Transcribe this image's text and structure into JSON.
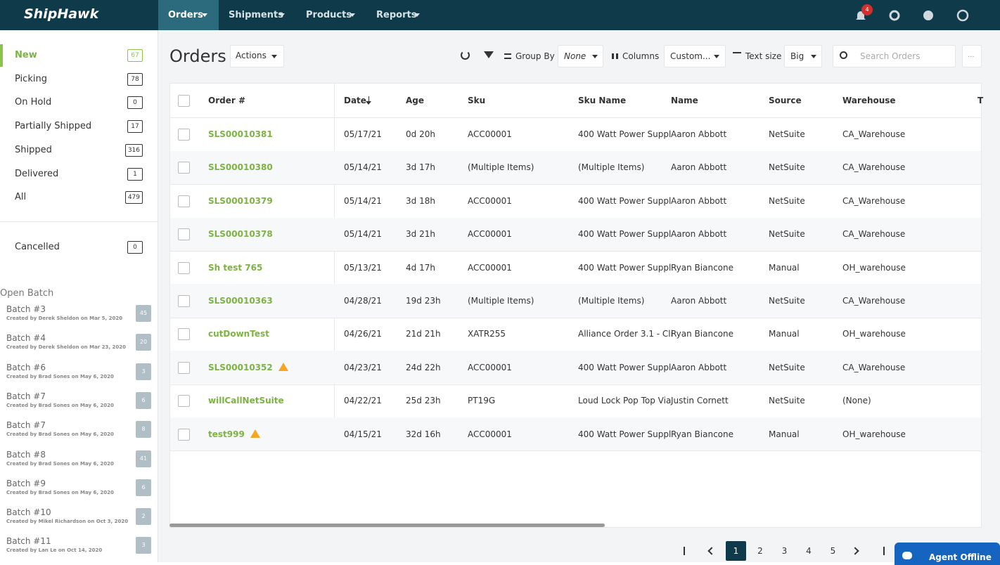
{
  "nav": {
    "brand": "ShipHawk",
    "menu": [
      "Orders",
      "Shipments",
      "Products",
      "Reports"
    ],
    "active": "Orders",
    "notifications": 4
  },
  "sidebar": {
    "active": "New",
    "statuses": [
      {
        "label": "New",
        "count": 67
      },
      {
        "label": "Picking",
        "count": 78
      },
      {
        "label": "On Hold",
        "count": 0
      },
      {
        "label": "Partially Shipped",
        "count": 17
      },
      {
        "label": "Shipped",
        "count": 316
      },
      {
        "label": "Delivered",
        "count": 1
      },
      {
        "label": "All",
        "count": 479
      }
    ],
    "cancelled": {
      "label": "Cancelled",
      "count": 0
    },
    "open_batch": {
      "title": "Open Batch",
      "batches": [
        {
          "name": "Batch #3",
          "created": "Created by Derek Sheldon on Mar 5, 2020",
          "count": 45
        },
        {
          "name": "Batch #4",
          "created": "Created by Derek Sheldon on Mar 23, 2020",
          "count": 20
        },
        {
          "name": "Batch #6",
          "created": "Created by Brad Sones on May 6, 2020",
          "count": 3
        },
        {
          "name": "Batch #7",
          "created": "Created by Brad Sones on May 6, 2020",
          "count": 6
        },
        {
          "name": "Batch #7",
          "created": "Created by Brad Sones on May 6, 2020",
          "count": 8
        },
        {
          "name": "Batch #8",
          "created": "Created by Brad Sones on May 6, 2020",
          "count": 41
        },
        {
          "name": "Batch #9",
          "created": "Created by Brad Sones on May 6, 2020",
          "count": 6
        },
        {
          "name": "Batch #10",
          "created": "Created by Mikel Richardson on Oct 3, 2020",
          "count": 2
        },
        {
          "name": "Batch #11",
          "created": "Created by Lan Le on Oct 14, 2020",
          "count": 3
        }
      ]
    }
  },
  "toolbar": {
    "title": "Orders",
    "actions": "Actions",
    "group_by": "Group By",
    "group_by_value": "None",
    "columns": "Columns",
    "columns_value": "Custom...",
    "text_size": "Text size",
    "text_size_value": "Big",
    "search_placeholder": "Search Orders",
    "more": "..."
  },
  "table": {
    "headers": [
      "Order #",
      "Date",
      "Age",
      "Sku",
      "Sku Name",
      "Name",
      "Source",
      "Warehouse",
      "T"
    ],
    "rows": [
      {
        "cells": [
          "SLS00010381",
          "05/17/21",
          "0d 20h",
          "ACC00001",
          "400 Watt Power Suppl",
          "Aaron Abbott",
          "NetSuite",
          "CA_Warehouse"
        ]
      },
      {
        "cells": [
          "SLS00010380",
          "05/14/21",
          "3d 17h",
          "(Multiple Items)",
          "(Multiple Items)",
          "Aaron Abbott",
          "NetSuite",
          "CA_Warehouse"
        ]
      },
      {
        "cells": [
          "SLS00010379",
          "05/14/21",
          "3d 18h",
          "ACC00001",
          "400 Watt Power Suppl",
          "Aaron Abbott",
          "NetSuite",
          "CA_Warehouse"
        ]
      },
      {
        "cells": [
          "SLS00010378",
          "05/14/21",
          "3d 21h",
          "ACC00001",
          "400 Watt Power Suppl",
          "Aaron Abbott",
          "NetSuite",
          "CA_Warehouse"
        ]
      },
      {
        "cells": [
          "Sh test 765",
          "05/13/21",
          "4d 17h",
          "ACC00001",
          "400 Watt Power Suppl",
          "Ryan Biancone",
          "Manual",
          "OH_warehouse"
        ]
      },
      {
        "cells": [
          "SLS00010363",
          "04/28/21",
          "19d 23h",
          "(Multiple Items)",
          "(Multiple Items)",
          "Aaron Abbott",
          "NetSuite",
          "CA_Warehouse"
        ]
      },
      {
        "cells": [
          "cutDownTest",
          "04/26/21",
          "21d 21h",
          "XATR255",
          "Alliance Order 3.1 - Cli",
          "Ryan Biancone",
          "Manual",
          "OH_warehouse"
        ]
      },
      {
        "cells": [
          "SLS00010352",
          "04/23/21",
          "24d 22h",
          "ACC00001",
          "400 Watt Power Suppl",
          "Aaron Abbott",
          "NetSuite",
          "CA_Warehouse"
        ],
        "warning": true
      },
      {
        "cells": [
          "willCallNetSuite",
          "04/22/21",
          "25d 23h",
          "PT19G",
          "Loud Lock Pop Top Via",
          "Justin Cornett",
          "NetSuite",
          "(None)"
        ]
      },
      {
        "cells": [
          "test999",
          "04/15/21",
          "32d 16h",
          "ACC00001",
          "400 Watt Power Suppl",
          "Ryan Biancone",
          "Manual",
          "OH_warehouse"
        ],
        "warning": true
      }
    ]
  },
  "pagination": {
    "pages": [
      1,
      2,
      3,
      4,
      5
    ],
    "current": 1
  },
  "agent": "Agent Offline"
}
